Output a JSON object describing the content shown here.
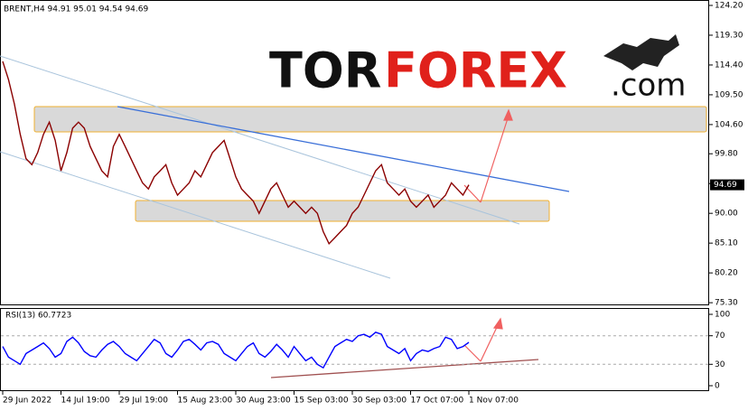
{
  "logo": {
    "dark": "TOR",
    "red": "FOREX",
    "suffix": ".com"
  },
  "chart_data": [
    {
      "type": "line",
      "title": "BRENT,H4 94.91 95.01 94.54 94.69",
      "color": "#8b0000",
      "values": [
        115,
        112,
        108,
        103,
        99,
        98,
        100,
        103,
        105,
        102,
        97,
        100,
        104,
        105,
        104,
        101,
        99,
        97,
        96,
        101,
        103,
        101,
        99,
        97,
        95,
        94,
        96,
        97,
        98,
        95,
        93,
        94,
        95,
        97,
        96,
        98,
        100,
        101,
        102,
        99,
        96,
        94,
        93,
        92,
        90,
        92,
        94,
        95,
        93,
        91,
        92,
        91,
        90,
        91,
        90,
        87,
        85,
        86,
        87,
        88,
        90,
        91,
        93,
        95,
        97,
        98,
        95,
        94,
        93,
        94,
        92,
        91,
        92,
        93,
        91,
        92,
        93,
        95,
        94,
        93,
        94.69
      ],
      "last_price": {
        "value": 94.69,
        "label": "94.69"
      },
      "ylim": [
        74.87,
        125.09
      ],
      "yticks": [
        {
          "value": 124.2,
          "label": "124.20"
        },
        {
          "value": 119.3,
          "label": "119.30"
        },
        {
          "value": 114.4,
          "label": "114.40"
        },
        {
          "value": 109.5,
          "label": "109.50"
        },
        {
          "value": 104.6,
          "label": "104.60"
        },
        {
          "value": 99.8,
          "label": "99.80"
        },
        {
          "value": 94.9,
          "label": "94.90"
        },
        {
          "value": 90,
          "label": "90.00"
        },
        {
          "value": 85.1,
          "label": "85.10"
        },
        {
          "value": 80.2,
          "label": "80.20"
        },
        {
          "value": 75.3,
          "label": "75.30"
        }
      ]
    },
    {
      "type": "line",
      "title": "RSI(13) 60.7723",
      "color": "#0000ff",
      "categories": [
        "29 Jun 2022",
        null,
        null,
        null,
        null,
        null,
        null,
        null,
        null,
        null,
        "14 Jul 19:00",
        null,
        null,
        null,
        null,
        null,
        null,
        null,
        null,
        null,
        "29 Jul 19:00",
        null,
        null,
        null,
        null,
        null,
        null,
        null,
        null,
        null,
        "15 Aug 23:00",
        null,
        null,
        null,
        null,
        null,
        null,
        null,
        null,
        null,
        "30 Aug 23:00",
        null,
        null,
        null,
        null,
        null,
        null,
        null,
        null,
        null,
        "15 Sep 03:00",
        null,
        null,
        null,
        null,
        null,
        null,
        null,
        null,
        null,
        "30 Sep 03:00",
        null,
        null,
        null,
        null,
        null,
        null,
        null,
        null,
        null,
        "17 Oct 07:00",
        null,
        null,
        null,
        null,
        null,
        null,
        null,
        null,
        null,
        "1 Nov 07:00"
      ],
      "values": [
        55,
        40,
        35,
        30,
        45,
        50,
        55,
        60,
        52,
        40,
        45,
        62,
        68,
        60,
        48,
        42,
        40,
        50,
        58,
        62,
        55,
        45,
        40,
        35,
        45,
        55,
        65,
        60,
        45,
        40,
        50,
        62,
        65,
        58,
        50,
        60,
        62,
        58,
        45,
        40,
        35,
        45,
        55,
        60,
        45,
        40,
        48,
        58,
        50,
        40,
        55,
        45,
        35,
        40,
        30,
        25,
        40,
        55,
        60,
        65,
        62,
        70,
        72,
        68,
        75,
        72,
        55,
        50,
        45,
        52,
        35,
        45,
        50,
        48,
        52,
        55,
        68,
        65,
        52,
        55,
        60.7723
      ],
      "ylim": [
        -7.6,
        107.6
      ],
      "yticks": [
        100,
        70,
        30,
        0
      ],
      "levels": [
        70,
        30
      ]
    }
  ]
}
